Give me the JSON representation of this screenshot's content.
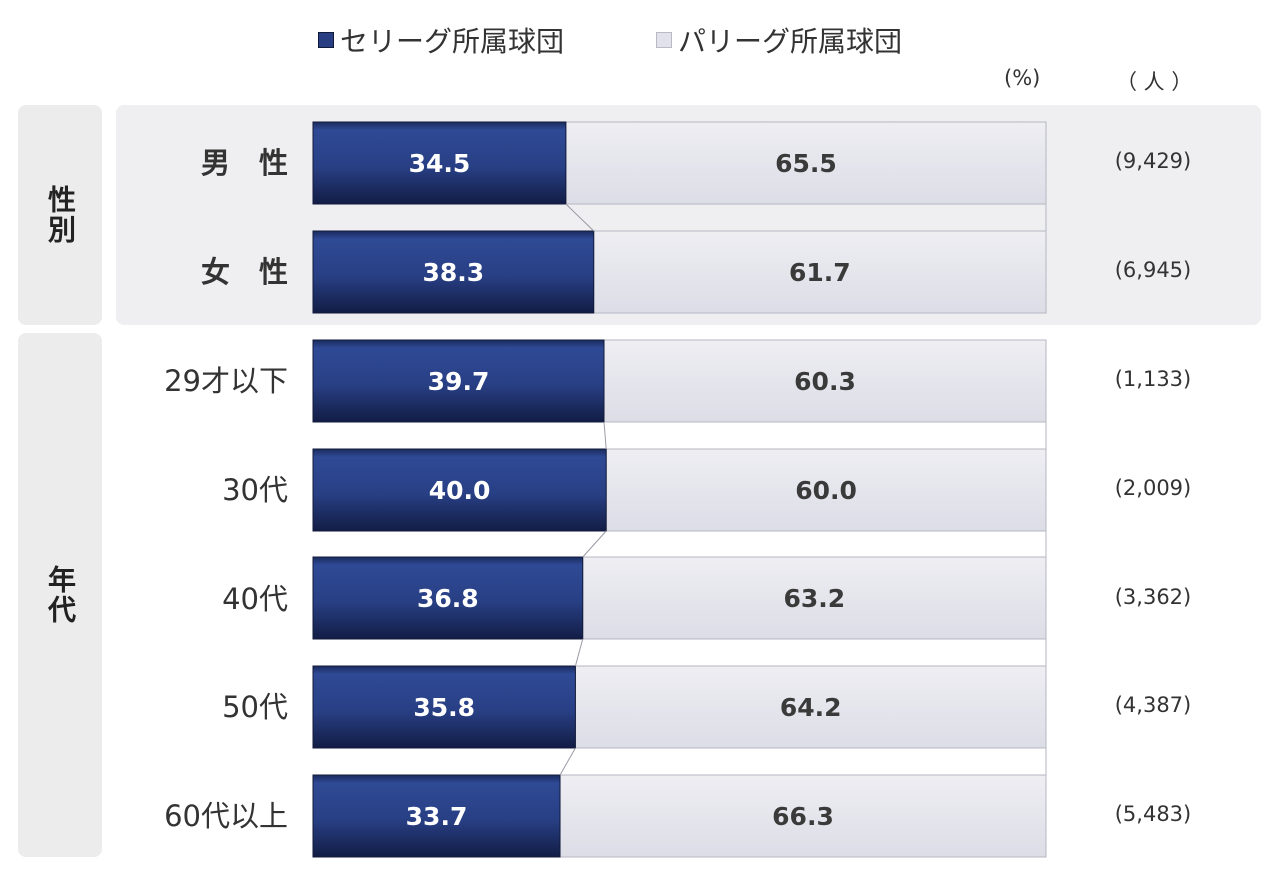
{
  "chart_data": {
    "type": "bar",
    "orientation": "horizontal",
    "stacked": true,
    "percent_unit": "(%)",
    "count_unit": "（ 人 ）",
    "series": [
      {
        "name": "セリーグ所属球団",
        "color": "#283f84"
      },
      {
        "name": "パリーグ所属球団",
        "color": "#e1e2ea"
      }
    ],
    "groups": [
      {
        "label": "性別",
        "rows": [
          {
            "label": "男　性",
            "se": "34.5",
            "pa": "65.5",
            "count": "(9,429)"
          },
          {
            "label": "女　性",
            "se": "38.3",
            "pa": "61.7",
            "count": "(6,945)"
          }
        ]
      },
      {
        "label": "年代",
        "rows": [
          {
            "label": "29才以下",
            "se": "39.7",
            "pa": "60.3",
            "count": "(1,133)"
          },
          {
            "label": "30代",
            "se": "40.0",
            "pa": "60.0",
            "count": "(2,009)"
          },
          {
            "label": "40代",
            "se": "36.8",
            "pa": "63.2",
            "count": "(3,362)"
          },
          {
            "label": "50代",
            "se": "35.8",
            "pa": "64.2",
            "count": "(4,387)"
          },
          {
            "label": "60代以上",
            "se": "33.7",
            "pa": "66.3",
            "count": "(5,483)"
          }
        ]
      }
    ],
    "xlim": [
      0,
      100
    ],
    "grid": false,
    "legend_position": "top"
  }
}
